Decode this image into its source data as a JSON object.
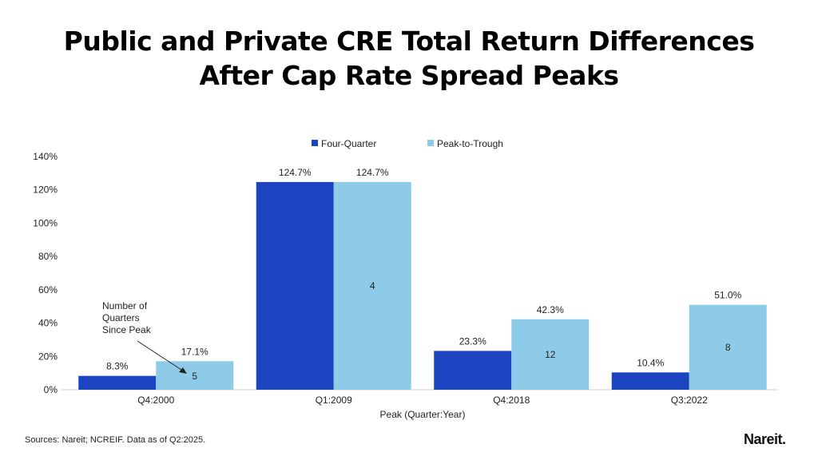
{
  "title_lines": [
    "Public and Private CRE Total Return Differences",
    "After Cap Rate Spread Peaks"
  ],
  "source": "Sources: Nareit; NCREIF. Data as of Q2:2025.",
  "logo": "Nareit.",
  "colors": {
    "four_quarter": "#1c44c0",
    "peak_to_trough": "#8ecbe8"
  },
  "chart_data": {
    "type": "bar",
    "categories": [
      "Q4:2000",
      "Q1:2009",
      "Q4:2018",
      "Q3:2022"
    ],
    "series": [
      {
        "name": "Four-Quarter",
        "values": [
          8.3,
          124.7,
          23.3,
          10.4
        ],
        "labels": [
          "8.3%",
          "124.7%",
          "23.3%",
          "10.4%"
        ]
      },
      {
        "name": "Peak-to-Trough",
        "values": [
          17.1,
          124.7,
          42.3,
          51.0
        ],
        "labels": [
          "17.1%",
          "124.7%",
          "42.3%",
          "51.0%"
        ],
        "inner_labels": [
          "5",
          "4",
          "12",
          "8"
        ]
      }
    ],
    "xlabel": "Peak (Quarter:Year)",
    "ylabel": "",
    "ylim": [
      0,
      140
    ],
    "yticks": [
      "0%",
      "20%",
      "40%",
      "60%",
      "80%",
      "100%",
      "120%",
      "140%"
    ],
    "grid": false,
    "legend": "top-center",
    "annotation": [
      "Number of",
      "Quarters",
      "Since Peak"
    ]
  }
}
